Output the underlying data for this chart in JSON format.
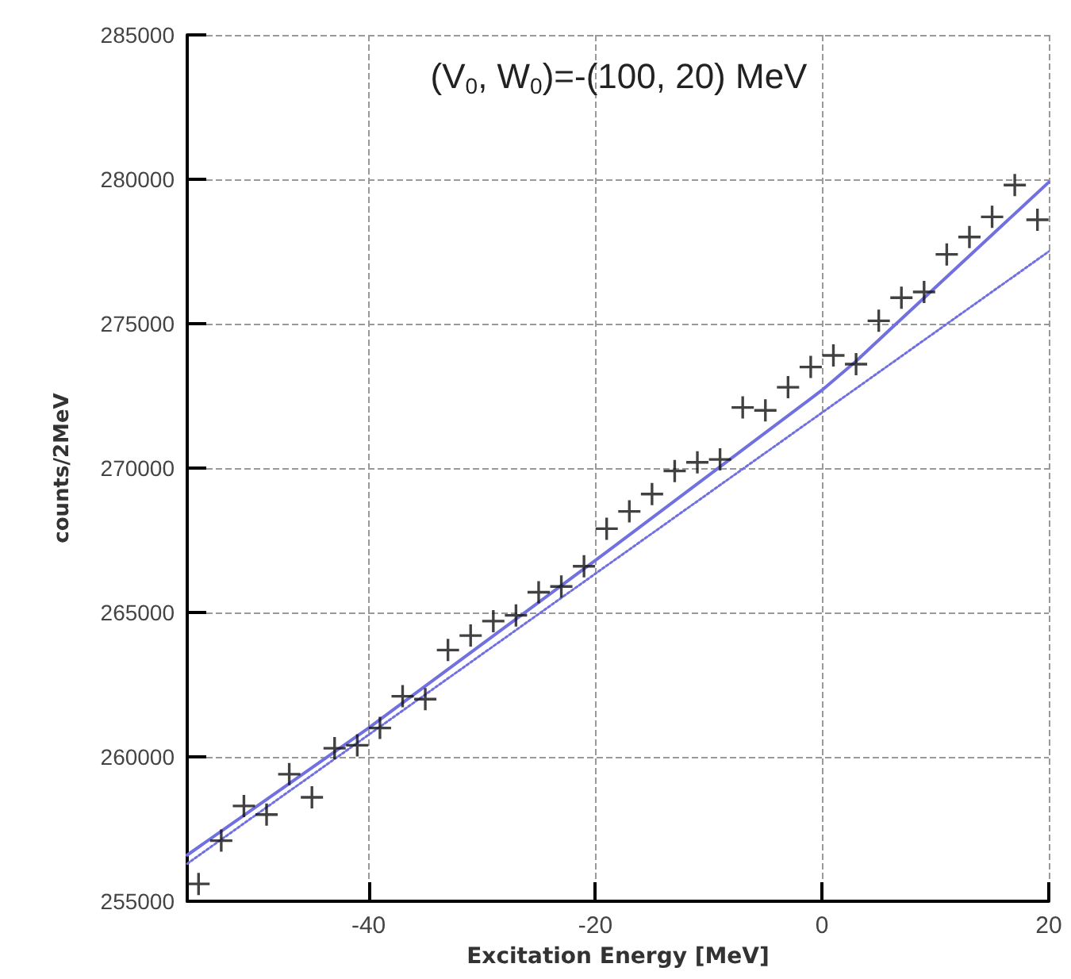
{
  "chart_data": {
    "type": "scatter",
    "title": "(V$_{0}$, W$_{0}$)=-(100, 20) MeV",
    "xlabel": "Excitation Energy [MeV]",
    "ylabel": "counts/2MeV",
    "xlim": [
      -56,
      20
    ],
    "xticks": [
      -40,
      -20,
      0,
      20
    ],
    "ylim": [
      255000,
      285000
    ],
    "yticks": [
      255000,
      260000,
      265000,
      270000,
      275000,
      280000,
      285000
    ],
    "grid": true,
    "marker": "cross",
    "series": [
      {
        "color": "#111111",
        "x": [
          -55,
          -53,
          -51,
          -49,
          -47,
          -45,
          -43,
          -41,
          -39,
          -37,
          -35,
          -33,
          -31,
          -29,
          -27,
          -25,
          -23,
          -21,
          -19,
          -17,
          -15,
          -13,
          -11,
          -9,
          -7,
          -5,
          -3,
          -1,
          1,
          3,
          5,
          7,
          9,
          11,
          13,
          15,
          17,
          19
        ],
        "values": [
          255600,
          257100,
          258300,
          258000,
          259400,
          258600,
          260300,
          260400,
          261000,
          262100,
          262000,
          263700,
          264200,
          264700,
          264900,
          265700,
          265900,
          266600,
          267900,
          268500,
          269100,
          269900,
          270200,
          270300,
          272100,
          272000,
          272800,
          273500,
          273900,
          273600,
          275100,
          275900,
          276100,
          277400,
          278000,
          278700,
          279800,
          278600
        ]
      },
      {
        "type": "line",
        "color": "#7070e0",
        "line_style": "solid",
        "marker": "none",
        "x": [
          -56,
          -40,
          -20,
          0,
          3,
          6,
          20
        ],
        "values": [
          256600,
          261000,
          266800,
          272700,
          273700,
          274800,
          279900
        ]
      },
      {
        "type": "line",
        "color": "#7070e0",
        "line_style": "dotted",
        "marker": "none",
        "x": [
          -56,
          20
        ],
        "values": [
          256300,
          277500
        ]
      }
    ]
  }
}
